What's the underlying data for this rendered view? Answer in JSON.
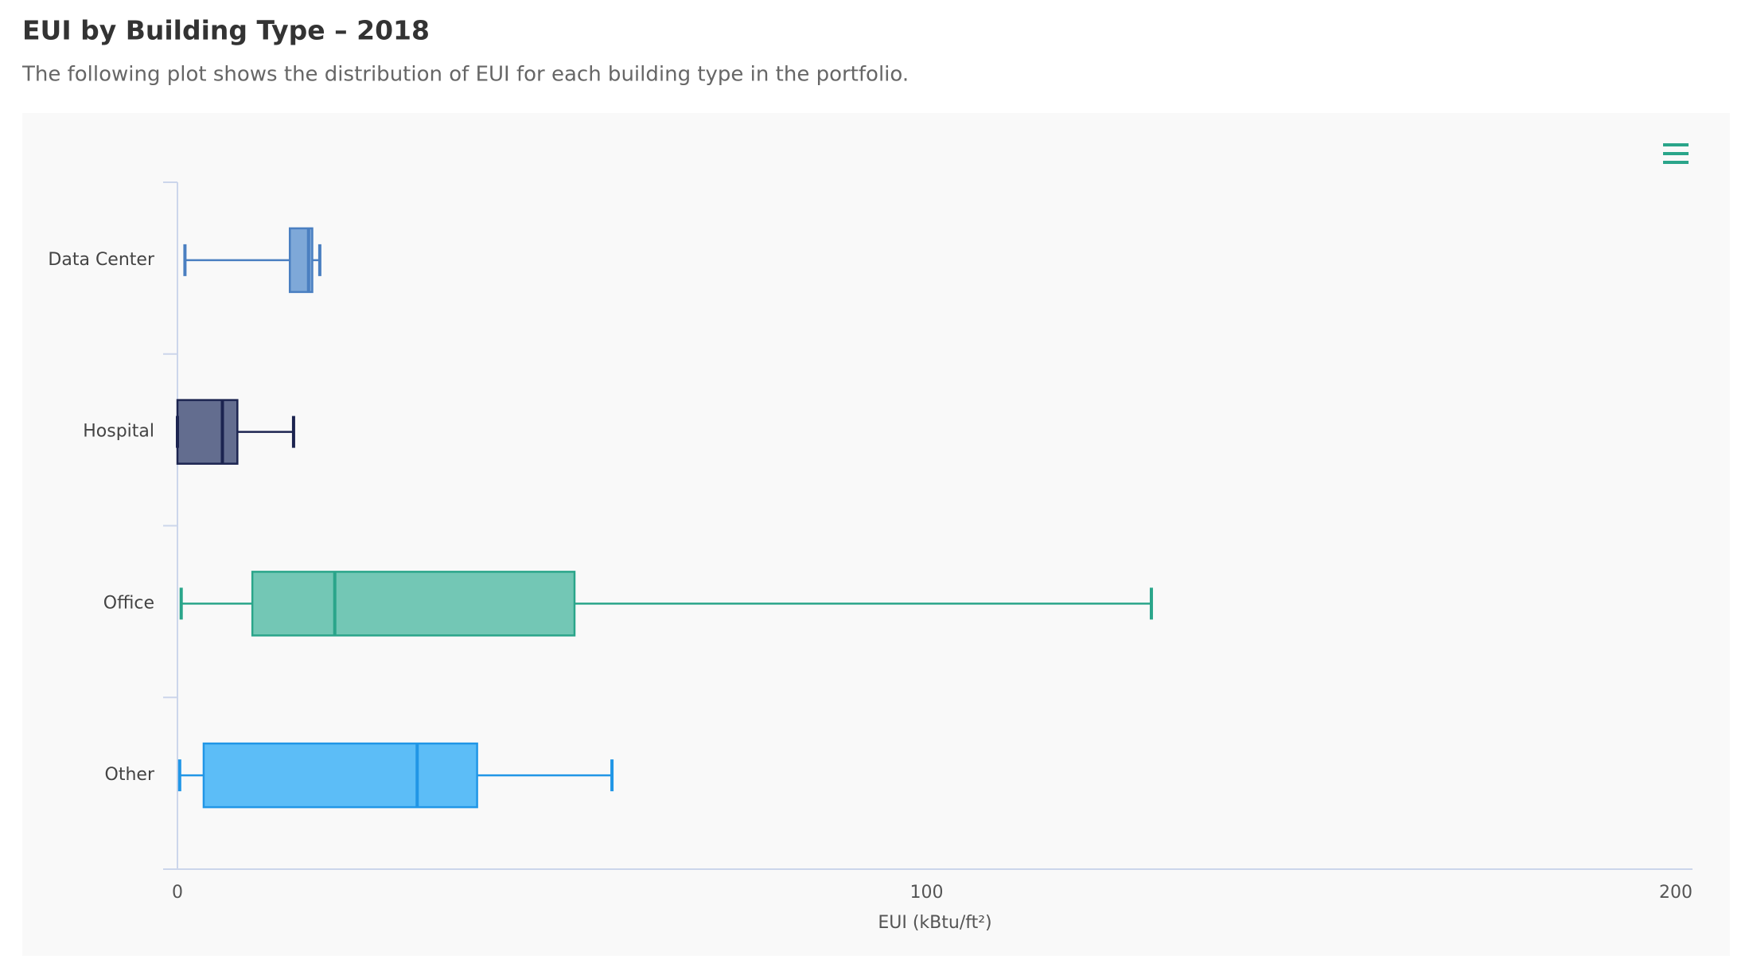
{
  "chart_data": {
    "type": "box",
    "orientation": "horizontal",
    "title": "EUI by Building Type – 2018",
    "subtitle": "The following plot shows the distribution of EUI for each building type in the portfolio.",
    "x_label": "EUI (kBtu/ft²)",
    "categories": [
      "Data Center",
      "Hospital",
      "Office",
      "Other"
    ],
    "boxes": [
      {
        "low": 1,
        "q1": 15,
        "median": 17.5,
        "q3": 18,
        "high": 19
      },
      {
        "low": 0,
        "q1": 0,
        "median": 6,
        "q3": 8,
        "high": 15.5
      },
      {
        "low": 0.5,
        "q1": 10,
        "median": 21,
        "q3": 53,
        "high": 130
      },
      {
        "low": 0.3,
        "q1": 3.5,
        "median": 32,
        "q3": 40,
        "high": 58
      }
    ],
    "colors": [
      "#7ea8d8",
      "#636d8f",
      "#73c7b5",
      "#5cbdf7"
    ],
    "edge_colors": [
      "#4a7fc1",
      "#1c2450",
      "#2aa58a",
      "#2196e6"
    ],
    "xlim": [
      0,
      200
    ],
    "xticks": [
      0,
      100,
      200
    ]
  }
}
